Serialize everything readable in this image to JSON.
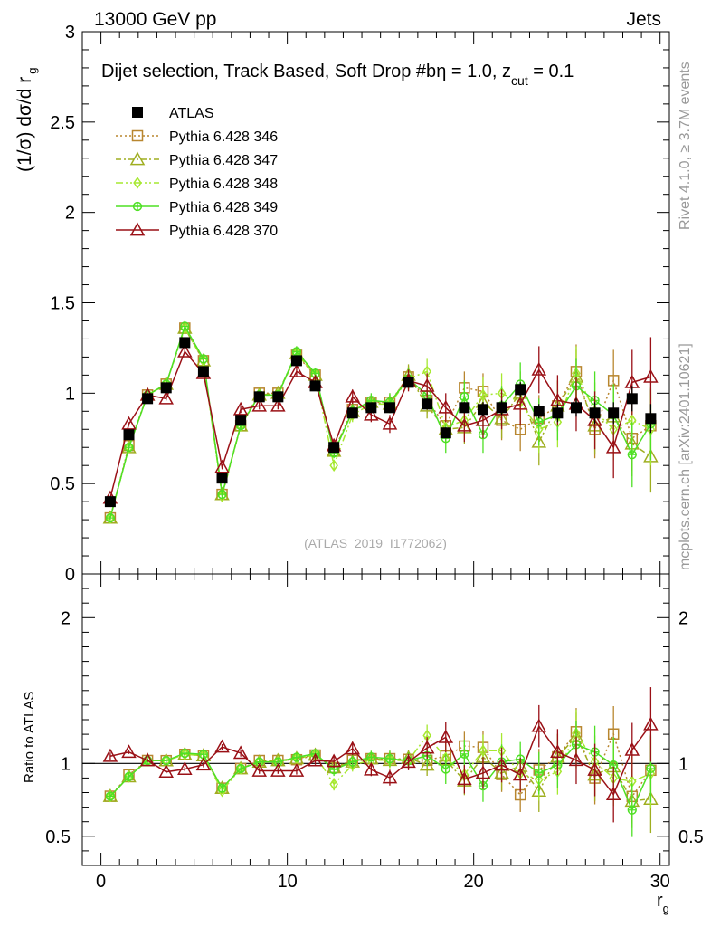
{
  "header": {
    "energy": "13000 GeV pp",
    "process": "Jets",
    "title_main": "Dijet selection, Track Based, Soft Drop #b",
    "title_eq1": "η = 1.0, z",
    "title_sub": "cut",
    "title_eq2": " = 0.1"
  },
  "side_labels": {
    "rivet": "Rivet 4.1.0, ≥ 3.7M events",
    "mcplots": "mcplots.cern.ch [arXiv:2401.10621]"
  },
  "watermark": "(ATLAS_2019_I1772062)",
  "axes": {
    "top_ylabel_main": "(1/σ) dσ/d r",
    "top_ylabel_sub": "g",
    "bottom_ylabel": "Ratio to ATLAS",
    "xlabel_main": "r",
    "xlabel_sub": "g"
  },
  "colors": {
    "data": "#000000",
    "s346": "#b8862f",
    "s347": "#9fae20",
    "s348": "#a6e830",
    "s349": "#4ee024",
    "s370": "#9a1016"
  },
  "chart_data": {
    "type": "line",
    "x": [
      0.5,
      1.5,
      2.5,
      3.5,
      4.5,
      5.5,
      6.5,
      7.5,
      8.5,
      9.5,
      10.5,
      11.5,
      12.5,
      13.5,
      14.5,
      15.5,
      16.5,
      17.5,
      18.5,
      19.5,
      20.5,
      21.5,
      22.5,
      23.5,
      24.5,
      25.5,
      26.5,
      27.5,
      28.5,
      29.5
    ],
    "xlim": [
      -1,
      30.5
    ],
    "top": {
      "ylim": [
        0,
        3
      ],
      "yticks": [
        0,
        0.5,
        1,
        1.5,
        2,
        2.5,
        3
      ],
      "ytick_labels": [
        "0",
        "0.5",
        "1",
        "1.5",
        "2",
        "2.5",
        "3"
      ]
    },
    "bottom": {
      "ylim": [
        0.3,
        2.3
      ],
      "yticks": [
        0.5,
        1,
        2
      ],
      "ytick_labels": [
        "0.5",
        "1",
        "2"
      ]
    },
    "xticks": [
      0,
      10,
      20,
      30
    ],
    "xtick_labels": [
      "0",
      "10",
      "20",
      "30"
    ],
    "data_series": {
      "name": "ATLAS",
      "values": [
        0.4,
        0.77,
        0.97,
        1.03,
        1.28,
        1.12,
        0.53,
        0.85,
        0.98,
        0.98,
        1.18,
        1.04,
        0.7,
        0.89,
        0.92,
        0.92,
        1.06,
        0.94,
        0.78,
        0.92,
        0.91,
        0.92,
        1.02,
        0.9,
        0.89,
        0.92,
        0.89,
        0.89,
        0.97,
        0.86
      ],
      "errors": [
        0.01,
        0.01,
        0.01,
        0.01,
        0.01,
        0.01,
        0.01,
        0.01,
        0.01,
        0.01,
        0.01,
        0.01,
        0.01,
        0.02,
        0.02,
        0.02,
        0.02,
        0.03,
        0.03,
        0.03,
        0.04,
        0.04,
        0.04,
        0.04,
        0.05,
        0.05,
        0.06,
        0.06,
        0.07,
        0.08
      ]
    },
    "series": [
      {
        "name": "Pythia 6.428 346",
        "key": "s346",
        "marker": "square",
        "dash": "2,3",
        "values": [
          0.31,
          0.71,
          0.99,
          1.05,
          1.36,
          1.18,
          0.44,
          0.82,
          1.0,
          1.0,
          1.21,
          1.1,
          0.68,
          0.91,
          0.95,
          0.95,
          1.09,
          0.96,
          0.82,
          1.03,
          1.01,
          0.85,
          0.8,
          0.86,
          0.93,
          1.12,
          0.8,
          1.07,
          0.75,
          0.82
        ],
        "errors": [
          0.01,
          0.01,
          0.01,
          0.01,
          0.02,
          0.02,
          0.01,
          0.02,
          0.02,
          0.02,
          0.03,
          0.03,
          0.03,
          0.04,
          0.04,
          0.05,
          0.06,
          0.07,
          0.08,
          0.09,
          0.1,
          0.11,
          0.12,
          0.13,
          0.14,
          0.15,
          0.16,
          0.17,
          0.18,
          0.2
        ]
      },
      {
        "name": "Pythia 6.428 347",
        "key": "s347",
        "marker": "triangle",
        "dash": "6,3,2,3",
        "values": [
          0.31,
          0.7,
          0.99,
          1.05,
          1.36,
          1.18,
          0.44,
          0.82,
          0.99,
          1.0,
          1.22,
          1.1,
          0.68,
          0.9,
          0.95,
          0.94,
          1.1,
          0.93,
          0.8,
          0.81,
          0.95,
          0.86,
          1.0,
          0.73,
          0.93,
          1.09,
          0.82,
          0.87,
          0.72,
          0.65
        ],
        "errors": [
          0.01,
          0.01,
          0.01,
          0.01,
          0.02,
          0.02,
          0.01,
          0.02,
          0.02,
          0.02,
          0.03,
          0.03,
          0.03,
          0.04,
          0.04,
          0.05,
          0.06,
          0.07,
          0.08,
          0.09,
          0.1,
          0.11,
          0.12,
          0.13,
          0.14,
          0.15,
          0.16,
          0.17,
          0.18,
          0.2
        ]
      },
      {
        "name": "Pythia 6.428 348",
        "key": "s348",
        "marker": "diamond",
        "dash": "8,3,2,3,2,3",
        "values": [
          0.31,
          0.7,
          0.99,
          1.05,
          1.36,
          1.18,
          0.43,
          0.82,
          0.99,
          0.99,
          1.22,
          1.1,
          0.6,
          0.88,
          0.94,
          0.94,
          1.08,
          1.12,
          0.81,
          0.85,
          0.99,
          1.0,
          0.95,
          0.8,
          0.84,
          1.11,
          0.9,
          0.8,
          0.85,
          0.8
        ],
        "errors": [
          0.01,
          0.01,
          0.01,
          0.01,
          0.02,
          0.02,
          0.01,
          0.02,
          0.02,
          0.02,
          0.03,
          0.03,
          0.03,
          0.04,
          0.04,
          0.05,
          0.06,
          0.07,
          0.08,
          0.09,
          0.1,
          0.11,
          0.12,
          0.13,
          0.14,
          0.15,
          0.16,
          0.17,
          0.18,
          0.2
        ]
      },
      {
        "name": "Pythia 6.428 349",
        "key": "s349",
        "marker": "circle",
        "dash": "",
        "values": [
          0.31,
          0.7,
          0.99,
          1.05,
          1.37,
          1.19,
          0.44,
          0.82,
          0.99,
          0.99,
          1.23,
          1.11,
          0.67,
          0.9,
          0.96,
          0.95,
          1.08,
          0.99,
          0.75,
          0.98,
          0.77,
          0.93,
          1.05,
          0.84,
          0.88,
          1.04,
          0.96,
          0.88,
          0.66,
          0.83
        ],
        "errors": [
          0.01,
          0.01,
          0.01,
          0.01,
          0.02,
          0.02,
          0.01,
          0.02,
          0.02,
          0.02,
          0.03,
          0.03,
          0.03,
          0.04,
          0.04,
          0.05,
          0.06,
          0.07,
          0.08,
          0.09,
          0.1,
          0.11,
          0.12,
          0.13,
          0.14,
          0.15,
          0.16,
          0.17,
          0.18,
          0.2
        ]
      },
      {
        "name": "Pythia 6.428 370",
        "key": "s370",
        "marker": "triangle-open",
        "dash": "",
        "values": [
          0.42,
          0.83,
          0.99,
          0.97,
          1.23,
          1.11,
          0.59,
          0.91,
          0.93,
          0.93,
          1.12,
          1.06,
          0.71,
          0.98,
          0.88,
          0.83,
          1.07,
          1.04,
          0.92,
          0.82,
          0.85,
          0.91,
          0.94,
          1.13,
          0.96,
          0.94,
          0.85,
          0.7,
          1.06,
          1.09
        ],
        "errors": [
          0.01,
          0.01,
          0.01,
          0.01,
          0.02,
          0.02,
          0.01,
          0.02,
          0.02,
          0.02,
          0.03,
          0.03,
          0.03,
          0.04,
          0.04,
          0.05,
          0.06,
          0.07,
          0.08,
          0.09,
          0.1,
          0.11,
          0.12,
          0.13,
          0.14,
          0.15,
          0.16,
          0.17,
          0.18,
          0.22
        ]
      }
    ]
  }
}
